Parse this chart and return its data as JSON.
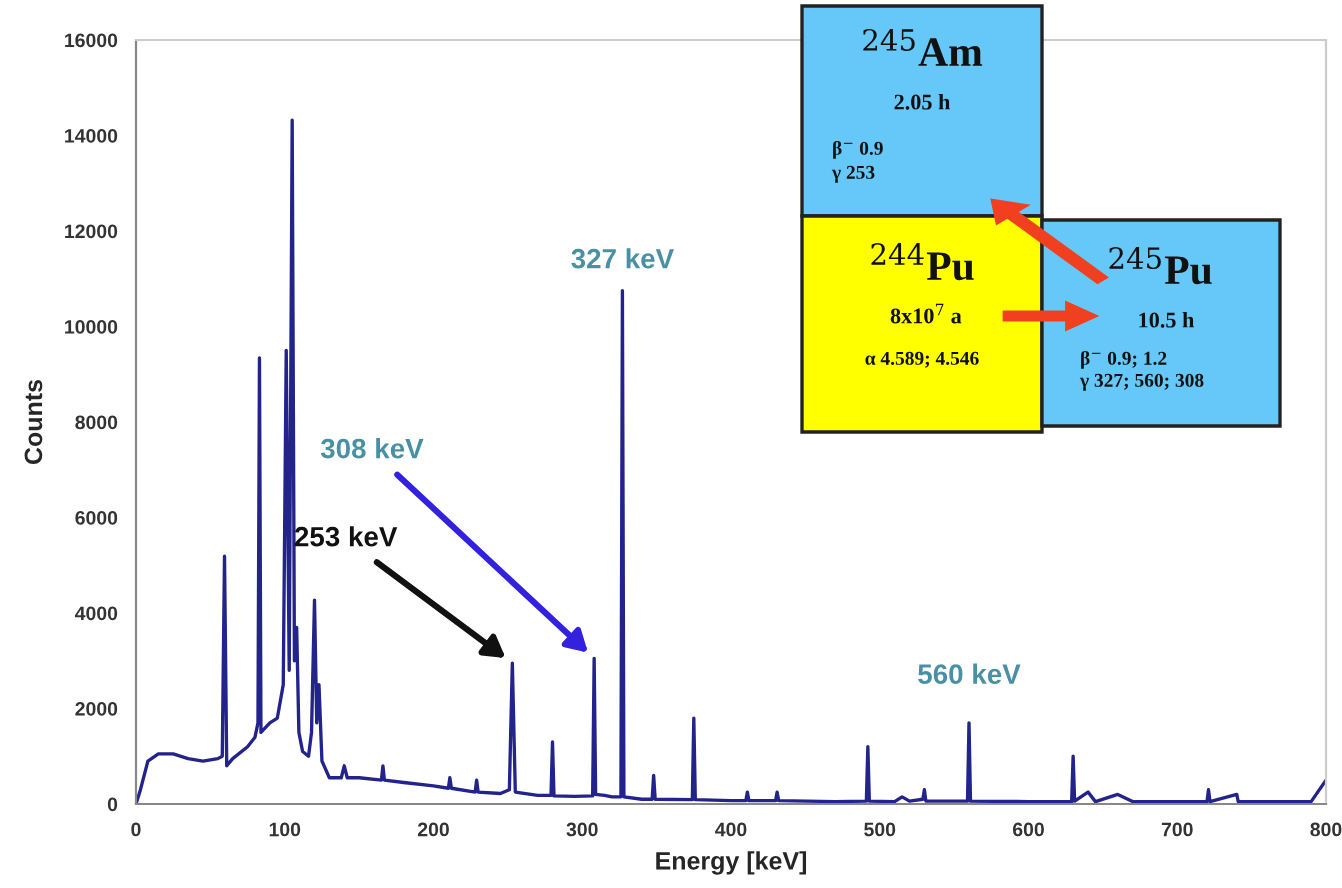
{
  "chart_data": {
    "type": "line",
    "xlabel": "Energy [keV]",
    "ylabel": "Counts",
    "xlim": [
      0,
      800
    ],
    "xticks": [
      0,
      100,
      200,
      300,
      400,
      500,
      600,
      700,
      800
    ],
    "ylim": [
      0,
      16000
    ],
    "yticks": [
      0,
      2000,
      4000,
      6000,
      8000,
      10000,
      12000,
      14000,
      16000
    ],
    "grid": false,
    "legend": false,
    "marker": "none",
    "line_style": "solid",
    "series": [
      {
        "color": "#23238c",
        "x": [
          0,
          3,
          8,
          15,
          25,
          35,
          45,
          55,
          58,
          59.5,
          61,
          65,
          75,
          80,
          82,
          83,
          84,
          90,
          95,
          99,
          101,
          103,
          105,
          106.5,
          108,
          109.5,
          112,
          116,
          118,
          120,
          121.5,
          123,
          125,
          130,
          138,
          140,
          142,
          150,
          165,
          166,
          167,
          180,
          200,
          210,
          211,
          212,
          228,
          229,
          230,
          245,
          251,
          253,
          255,
          270,
          279,
          280,
          281,
          295,
          307,
          308,
          309,
          315,
          320,
          326,
          327,
          328,
          340,
          347,
          348,
          349,
          374,
          375,
          376,
          400,
          410,
          411,
          412,
          430,
          431,
          432,
          470,
          491,
          492,
          493,
          510,
          515,
          520,
          529,
          530,
          531,
          559,
          560,
          561,
          600,
          629,
          630,
          631,
          640,
          645,
          660,
          670,
          720,
          721,
          722,
          740,
          741,
          790,
          800
        ],
        "values": [
          0,
          300,
          900,
          1050,
          1050,
          950,
          900,
          950,
          1000,
          5190,
          800,
          950,
          1200,
          1400,
          1700,
          9340,
          1500,
          1700,
          1800,
          2500,
          9500,
          2800,
          14320,
          3000,
          3700,
          1500,
          1100,
          1000,
          1500,
          4270,
          1700,
          2500,
          900,
          550,
          550,
          800,
          550,
          550,
          500,
          800,
          500,
          450,
          380,
          330,
          550,
          330,
          250,
          500,
          250,
          220,
          300,
          2950,
          250,
          180,
          180,
          1300,
          170,
          160,
          170,
          3050,
          200,
          180,
          150,
          150,
          10750,
          150,
          100,
          100,
          600,
          100,
          90,
          1800,
          90,
          70,
          70,
          250,
          70,
          70,
          250,
          70,
          50,
          60,
          1200,
          60,
          50,
          150,
          60,
          100,
          300,
          60,
          60,
          1700,
          60,
          50,
          50,
          1000,
          60,
          250,
          50,
          200,
          50,
          50,
          300,
          50,
          200,
          50,
          50,
          500
        ]
      }
    ],
    "annotations": [
      {
        "text": "253 keV",
        "x": 253,
        "y": 2950
      },
      {
        "text": "308 keV",
        "x": 308,
        "y": 3050
      },
      {
        "text": "327 keV",
        "x": 327,
        "y": 10750
      },
      {
        "text": "560 keV",
        "x": 560,
        "y": 1700
      },
      "$^{245}$Am",
      "2.05 h",
      "β$^{−}$ 0.9",
      "γ 253",
      "$^{244}$Pu",
      "8x10$^{7}$ a",
      "α 4.589; 4.546",
      "$^{245}$Pu",
      "10.5 h",
      "β$^{−}$ 0.9; 1.2",
      "γ 327; 560; 308"
    ]
  }
}
